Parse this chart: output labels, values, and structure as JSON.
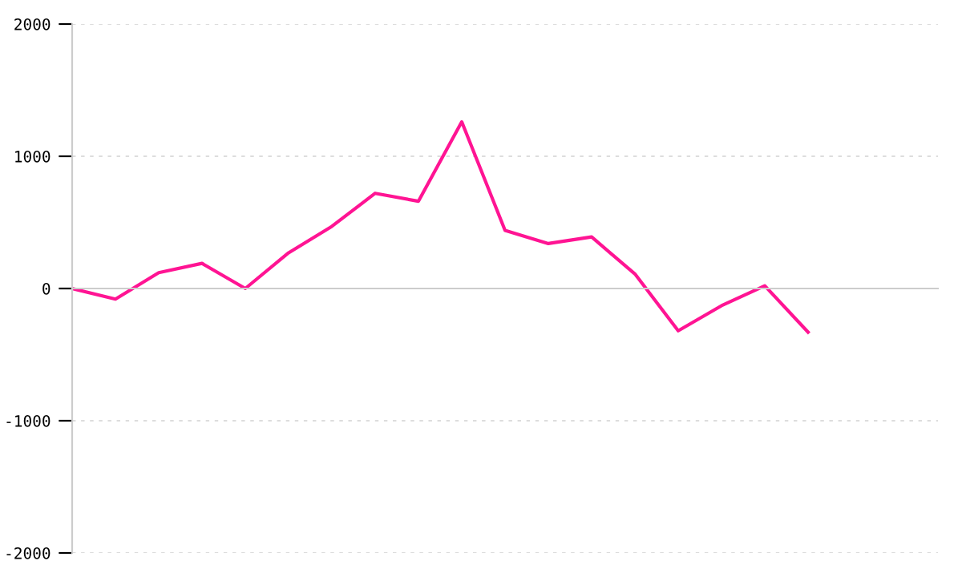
{
  "chart_data": {
    "type": "line",
    "categories": [
      null,
      null,
      null,
      null,
      null,
      null,
      null,
      null,
      null,
      null,
      null,
      null,
      null,
      null,
      null,
      null,
      null,
      null
    ],
    "series": [
      {
        "color": "#ff1493",
        "values": [
          0,
          -80,
          120,
          190,
          0,
          270,
          470,
          720,
          660,
          1260,
          440,
          340,
          390,
          110,
          -320,
          -130,
          20,
          -330
        ]
      }
    ],
    "ylim": [
      -2000,
      2000
    ],
    "yticks": [
      -2000,
      -1000,
      0,
      1000,
      2000
    ],
    "grid": "y",
    "legend": false,
    "marker": "none",
    "line_style": "solid"
  }
}
